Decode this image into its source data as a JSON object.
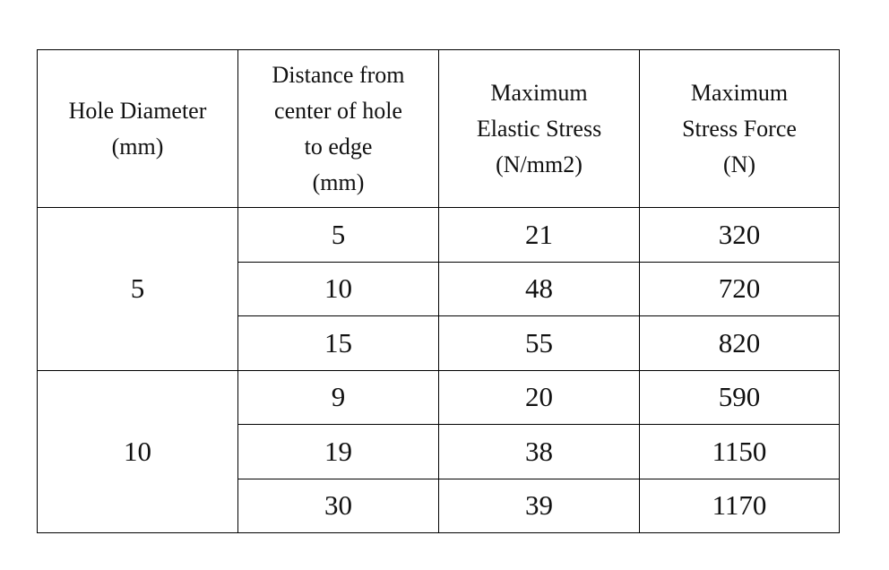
{
  "table": {
    "header": [
      [
        "Hole Diameter",
        "(mm)"
      ],
      [
        "Distance from",
        "center of hole",
        "to edge",
        "(mm)"
      ],
      [
        "Maximum",
        "Elastic Stress",
        "(N/mm2)"
      ],
      [
        "Maximum",
        "Stress Force",
        "(N)"
      ]
    ],
    "groups": [
      {
        "diameter": 5,
        "rows": [
          [
            5,
            21,
            320
          ],
          [
            10,
            48,
            720
          ],
          [
            15,
            55,
            820
          ]
        ]
      },
      {
        "diameter": 10,
        "rows": [
          [
            9,
            20,
            590
          ],
          [
            19,
            38,
            1150
          ],
          [
            30,
            39,
            1170
          ]
        ]
      }
    ]
  }
}
